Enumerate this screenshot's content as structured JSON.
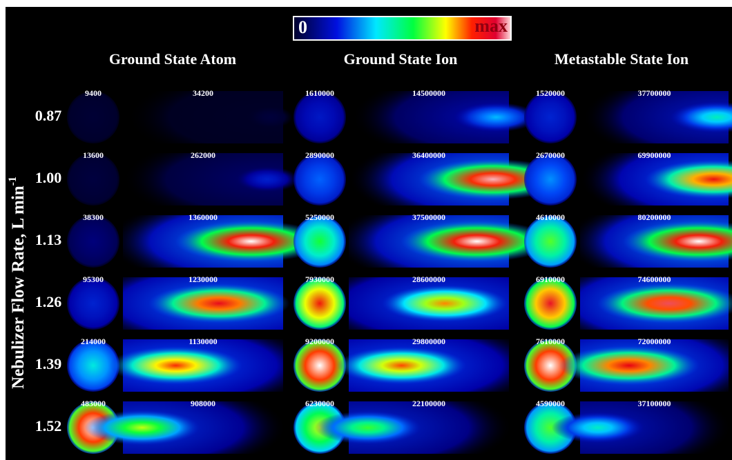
{
  "colorbar": {
    "min_label": "0",
    "max_label": "max"
  },
  "y_axis_label": {
    "text": "Nebulizer Flow Rate, L min",
    "superscript": "-1"
  },
  "columns": [
    "Ground State Atom",
    "Ground State Ion",
    "Metastable State Ion"
  ],
  "rows": [
    {
      "label": "0.87",
      "cells": [
        [
          9400,
          34200
        ],
        [
          1610000,
          14500000
        ],
        [
          1520000,
          37700000
        ]
      ]
    },
    {
      "label": "1.00",
      "cells": [
        [
          13600,
          262000
        ],
        [
          2890000,
          36400000
        ],
        [
          2670000,
          69900000
        ]
      ]
    },
    {
      "label": "1.13",
      "cells": [
        [
          38300,
          1360000
        ],
        [
          5250000,
          37500000
        ],
        [
          4610000,
          80200000
        ]
      ]
    },
    {
      "label": "1.26",
      "cells": [
        [
          95300,
          1230000
        ],
        [
          7930000,
          28600000
        ],
        [
          6910000,
          74600000
        ]
      ]
    },
    {
      "label": "1.39",
      "cells": [
        [
          214000,
          1130000
        ],
        [
          9200000,
          29800000
        ],
        [
          7610000,
          72000000
        ]
      ]
    },
    {
      "label": "1.52",
      "cells": [
        [
          483000,
          908000
        ],
        [
          6230000,
          22100000
        ],
        [
          4590000,
          37100000
        ]
      ]
    }
  ]
}
